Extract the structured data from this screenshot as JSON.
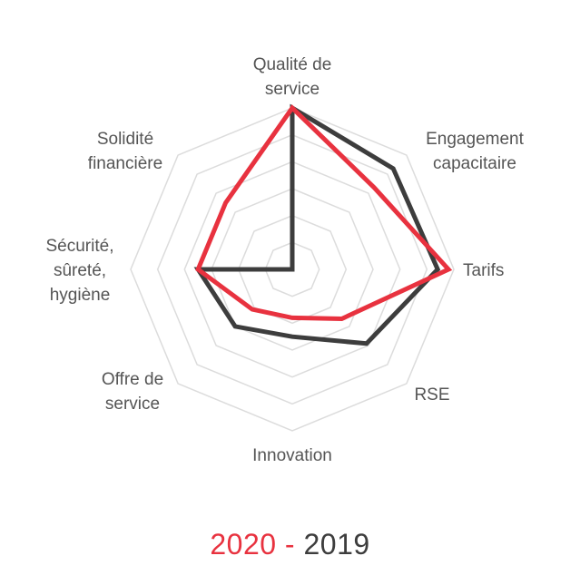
{
  "chart_data": {
    "type": "radar",
    "axes": [
      [
        "Qualité de",
        "service"
      ],
      [
        "Engagement",
        "capacitaire"
      ],
      [
        "Tarifs"
      ],
      [
        "RSE"
      ],
      [
        "Innovation"
      ],
      [
        "Offre de",
        "service"
      ],
      [
        "Sécurité,",
        "sûreté,",
        "hygiène"
      ],
      [
        "Solidité",
        "financière"
      ]
    ],
    "range": [
      0,
      6
    ],
    "rings": 6,
    "grid": true,
    "series": [
      {
        "name": "2019",
        "color": "#3d3d3d",
        "values": [
          6,
          5.3,
          5.4,
          3.9,
          2.5,
          3.0,
          3.5,
          0
        ]
      },
      {
        "name": "2020",
        "color": "#e8323f",
        "values": [
          6,
          4.3,
          5.8,
          2.6,
          1.8,
          2.1,
          3.5,
          3.5
        ]
      }
    ]
  },
  "legend": {
    "first": "2020",
    "separator": "-",
    "second": "2019",
    "first_color": "#e8323f",
    "second_color": "#3d3d3d"
  }
}
